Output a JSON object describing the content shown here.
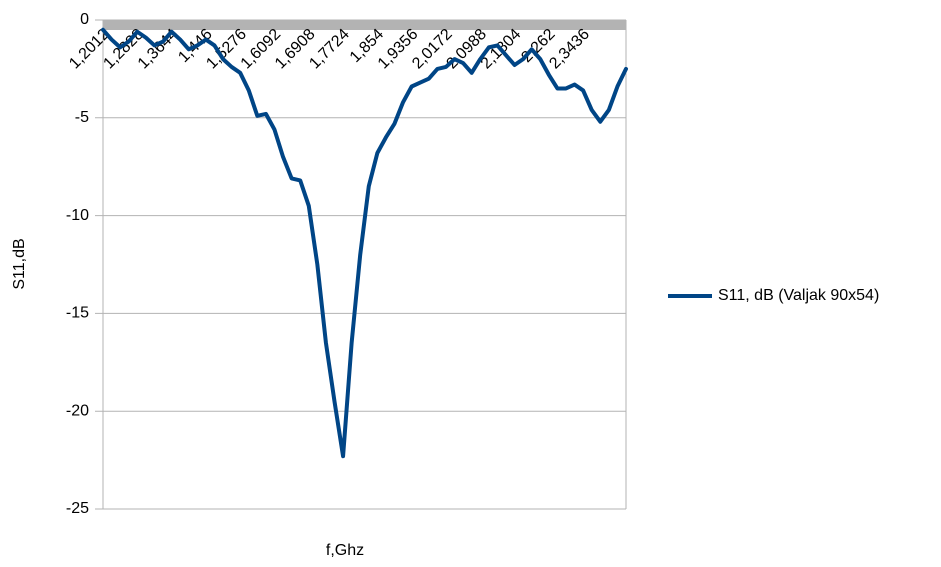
{
  "chart_data": {
    "type": "line",
    "x_label": "f,Ghz",
    "y_label": "S11,dB",
    "categories": [
      "1,2012",
      null,
      null,
      null,
      "1,2828",
      null,
      null,
      null,
      "1,3644",
      null,
      null,
      null,
      "1,446",
      null,
      null,
      null,
      "1,5276",
      null,
      null,
      null,
      "1,6092",
      null,
      null,
      null,
      "1,6908",
      null,
      null,
      null,
      "1,7724",
      null,
      null,
      null,
      "1,854",
      null,
      null,
      null,
      "1,9356",
      null,
      null,
      null,
      "2,0172",
      null,
      null,
      null,
      "2,0988",
      null,
      null,
      null,
      "2,1804",
      null,
      null,
      null,
      "2,262",
      null,
      null,
      null,
      "2,3436",
      null,
      null,
      null,
      null,
      null
    ],
    "series": [
      {
        "name": "S11, dB (Valjak 90x54)",
        "color": "#004586",
        "values": [
          -0.5,
          -1.0,
          -1.4,
          -1.1,
          -0.6,
          -0.9,
          -1.3,
          -1.1,
          -0.6,
          -1.0,
          -1.5,
          -1.3,
          -1.0,
          -1.3,
          -2.0,
          -2.4,
          -2.7,
          -3.6,
          -4.9,
          -4.8,
          -5.6,
          -7.0,
          -8.1,
          -8.2,
          -9.5,
          -12.5,
          -16.5,
          -19.5,
          -22.3,
          -16.5,
          -12.0,
          -8.5,
          -6.8,
          -6.0,
          -5.3,
          -4.2,
          -3.4,
          -3.2,
          -3.0,
          -2.5,
          -2.4,
          -2.0,
          -2.2,
          -2.7,
          -2.0,
          -1.4,
          -1.3,
          -1.8,
          -2.3,
          -2.0,
          -1.5,
          -2.0,
          -2.8,
          -3.5,
          -3.5,
          -3.3,
          -3.6,
          -4.6,
          -5.2,
          -4.6,
          -3.4,
          -2.5
        ]
      }
    ],
    "ylim": [
      -25,
      0
    ],
    "yticks": [
      0,
      -5,
      -10,
      -15,
      -20,
      -25
    ],
    "grid": true,
    "legend": "right"
  }
}
